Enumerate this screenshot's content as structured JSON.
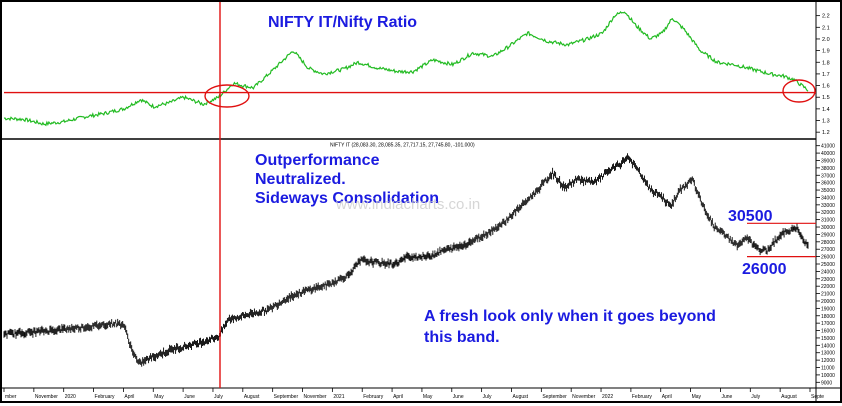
{
  "chart_data": [
    {
      "type": "line",
      "title": "NIFTY IT/Nifty Ratio",
      "ylim": [
        1.15,
        2.3
      ],
      "yticks": [
        1.2,
        1.3,
        1.4,
        1.5,
        1.6,
        1.7,
        1.8,
        1.9,
        2.0,
        2.1,
        2.2
      ],
      "ytick_labels": [
        "1.2",
        "1.3",
        "1.4",
        "1.5",
        "1.6",
        "1.7",
        "1.8",
        "1.9",
        "2.0",
        "2.1",
        "2.2"
      ],
      "grid": false,
      "series": [
        {
          "color": "#22bb22",
          "points": [
            {
              "i": 0,
              "y": 1.32
            },
            {
              "i": 20,
              "y": 1.31
            },
            {
              "i": 40,
              "y": 1.27
            },
            {
              "i": 60,
              "y": 1.29
            },
            {
              "i": 80,
              "y": 1.33
            },
            {
              "i": 100,
              "y": 1.36
            },
            {
              "i": 120,
              "y": 1.4
            },
            {
              "i": 137,
              "y": 1.48
            },
            {
              "i": 150,
              "y": 1.42
            },
            {
              "i": 165,
              "y": 1.45
            },
            {
              "i": 180,
              "y": 1.5
            },
            {
              "i": 200,
              "y": 1.44
            },
            {
              "i": 215,
              "y": 1.5
            },
            {
              "i": 230,
              "y": 1.62
            },
            {
              "i": 250,
              "y": 1.58
            },
            {
              "i": 268,
              "y": 1.72
            },
            {
              "i": 290,
              "y": 1.9
            },
            {
              "i": 305,
              "y": 1.75
            },
            {
              "i": 320,
              "y": 1.7
            },
            {
              "i": 340,
              "y": 1.74
            },
            {
              "i": 355,
              "y": 1.8
            },
            {
              "i": 375,
              "y": 1.75
            },
            {
              "i": 395,
              "y": 1.72
            },
            {
              "i": 410,
              "y": 1.72
            },
            {
              "i": 430,
              "y": 1.82
            },
            {
              "i": 450,
              "y": 1.78
            },
            {
              "i": 470,
              "y": 1.88
            },
            {
              "i": 490,
              "y": 1.85
            },
            {
              "i": 505,
              "y": 1.93
            },
            {
              "i": 525,
              "y": 2.05
            },
            {
              "i": 545,
              "y": 1.98
            },
            {
              "i": 565,
              "y": 1.95
            },
            {
              "i": 585,
              "y": 2.0
            },
            {
              "i": 600,
              "y": 2.05
            },
            {
              "i": 612,
              "y": 2.2
            },
            {
              "i": 622,
              "y": 2.24
            },
            {
              "i": 633,
              "y": 2.12
            },
            {
              "i": 648,
              "y": 2.0
            },
            {
              "i": 660,
              "y": 2.05
            },
            {
              "i": 670,
              "y": 2.18
            },
            {
              "i": 682,
              "y": 2.08
            },
            {
              "i": 698,
              "y": 1.9
            },
            {
              "i": 715,
              "y": 1.8
            },
            {
              "i": 732,
              "y": 1.78
            },
            {
              "i": 750,
              "y": 1.74
            },
            {
              "i": 768,
              "y": 1.7
            },
            {
              "i": 782,
              "y": 1.68
            },
            {
              "i": 792,
              "y": 1.65
            },
            {
              "i": 800,
              "y": 1.6
            },
            {
              "i": 806,
              "y": 1.56
            }
          ]
        }
      ],
      "annotations": [
        {
          "type": "hline",
          "y": 1.54,
          "color": "#e01010"
        }
      ]
    },
    {
      "type": "line",
      "title": "NIFTY IT (28,083.30, 28,085.35, 27,717.15, 27,745.80, -101.000)",
      "ylim": [
        8500,
        41500
      ],
      "yticks": [
        9000,
        10000,
        11000,
        12000,
        13000,
        14000,
        15000,
        16000,
        17000,
        18000,
        19000,
        20000,
        21000,
        22000,
        23000,
        24000,
        25000,
        26000,
        27000,
        28000,
        29000,
        30000,
        31000,
        32000,
        33000,
        34000,
        35000,
        36000,
        37000,
        38000,
        39000,
        40000,
        41000
      ],
      "ytick_labels": [
        "9000",
        "10000",
        "11000",
        "12000",
        "13000",
        "14000",
        "15000",
        "16000",
        "17000",
        "18000",
        "19000",
        "20000",
        "21000",
        "22000",
        "23000",
        "24000",
        "25000",
        "26000",
        "27000",
        "28000",
        "29000",
        "30000",
        "31000",
        "32000",
        "33000",
        "34000",
        "35000",
        "36000",
        "37000",
        "38000",
        "39000",
        "40000",
        "41000"
      ],
      "xtick_labels": [
        "mber",
        "November",
        "2020",
        "February",
        "April",
        "May",
        "June",
        "July",
        "August",
        "September",
        "November",
        "2021",
        "February",
        "April",
        "May",
        "June",
        "July",
        "August",
        "September",
        "November",
        "2022",
        "February",
        "April",
        "May",
        "June",
        "July",
        "August",
        "Septe"
      ],
      "grid": false,
      "series": [
        {
          "color": "#000000",
          "points": [
            {
              "i": 0,
              "y": 15500
            },
            {
              "i": 30,
              "y": 15800
            },
            {
              "i": 60,
              "y": 16200
            },
            {
              "i": 90,
              "y": 16600
            },
            {
              "i": 110,
              "y": 17000
            },
            {
              "i": 120,
              "y": 16800
            },
            {
              "i": 128,
              "y": 13500
            },
            {
              "i": 135,
              "y": 11500
            },
            {
              "i": 150,
              "y": 12500
            },
            {
              "i": 170,
              "y": 13500
            },
            {
              "i": 195,
              "y": 14300
            },
            {
              "i": 215,
              "y": 15200
            },
            {
              "i": 225,
              "y": 17500
            },
            {
              "i": 245,
              "y": 18200
            },
            {
              "i": 265,
              "y": 18800
            },
            {
              "i": 285,
              "y": 20500
            },
            {
              "i": 305,
              "y": 21500
            },
            {
              "i": 325,
              "y": 22200
            },
            {
              "i": 345,
              "y": 23500
            },
            {
              "i": 358,
              "y": 25500
            },
            {
              "i": 372,
              "y": 25200
            },
            {
              "i": 392,
              "y": 25000
            },
            {
              "i": 405,
              "y": 26000
            },
            {
              "i": 425,
              "y": 26000
            },
            {
              "i": 440,
              "y": 26800
            },
            {
              "i": 460,
              "y": 27500
            },
            {
              "i": 480,
              "y": 28800
            },
            {
              "i": 500,
              "y": 30500
            },
            {
              "i": 520,
              "y": 33000
            },
            {
              "i": 535,
              "y": 35000
            },
            {
              "i": 550,
              "y": 37300
            },
            {
              "i": 562,
              "y": 35300
            },
            {
              "i": 575,
              "y": 36500
            },
            {
              "i": 592,
              "y": 36000
            },
            {
              "i": 605,
              "y": 37500
            },
            {
              "i": 618,
              "y": 38500
            },
            {
              "i": 625,
              "y": 39500
            },
            {
              "i": 635,
              "y": 37800
            },
            {
              "i": 648,
              "y": 35000
            },
            {
              "i": 658,
              "y": 34300
            },
            {
              "i": 668,
              "y": 32800
            },
            {
              "i": 678,
              "y": 35000
            },
            {
              "i": 690,
              "y": 36500
            },
            {
              "i": 700,
              "y": 33000
            },
            {
              "i": 712,
              "y": 30000
            },
            {
              "i": 722,
              "y": 29000
            },
            {
              "i": 735,
              "y": 27500
            },
            {
              "i": 745,
              "y": 28500
            },
            {
              "i": 755,
              "y": 27000
            },
            {
              "i": 765,
              "y": 26800
            },
            {
              "i": 775,
              "y": 28500
            },
            {
              "i": 785,
              "y": 29500
            },
            {
              "i": 795,
              "y": 29800
            },
            {
              "i": 802,
              "y": 28000
            },
            {
              "i": 806,
              "y": 27800
            }
          ]
        }
      ],
      "annotations": [
        {
          "type": "hline",
          "y": 30500,
          "label": "30500",
          "color": "#e01010"
        },
        {
          "type": "hline",
          "y": 26000,
          "label": "26000",
          "color": "#e01010"
        }
      ]
    }
  ],
  "vline_color": "#e01010",
  "overlay": {
    "ratio_title": "NIFTY IT/Nifty Ratio",
    "line1": "Outperformance",
    "line2": "Neutralized.",
    "line3": "Sideways Consolidation",
    "watermark": "www.indiacharts.co.in",
    "band_note_1": "A fresh look only when it goes beyond",
    "band_note_2": "this band.",
    "upper_label": "30500",
    "lower_label": "26000"
  }
}
